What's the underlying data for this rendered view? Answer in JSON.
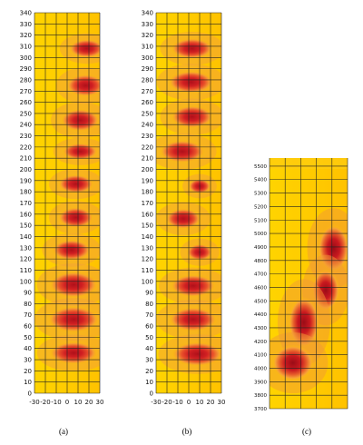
{
  "panels": [
    {
      "id": "a",
      "caption": "(a)",
      "x_ticks": [
        "-30",
        "-20",
        "-10",
        "0",
        "10",
        "20",
        "30"
      ],
      "y_ticks": [
        "340",
        "330",
        "320",
        "310",
        "300",
        "290",
        "280",
        "270",
        "260",
        "250",
        "240",
        "230",
        "220",
        "210",
        "200",
        "190",
        "180",
        "170",
        "160",
        "150",
        "140",
        "130",
        "120",
        "110",
        "100",
        "90",
        "80",
        "70",
        "60",
        "50",
        "40",
        "30",
        "20",
        "10",
        "0"
      ],
      "blobs": [
        {
          "x": 18,
          "y": 308,
          "w": 22,
          "h": 10
        },
        {
          "x": 17,
          "y": 275,
          "w": 24,
          "h": 12
        },
        {
          "x": 12,
          "y": 244,
          "w": 24,
          "h": 12
        },
        {
          "x": 12,
          "y": 216,
          "w": 22,
          "h": 9
        },
        {
          "x": 8,
          "y": 187,
          "w": 22,
          "h": 10
        },
        {
          "x": 8,
          "y": 157,
          "w": 22,
          "h": 11
        },
        {
          "x": 4,
          "y": 128,
          "w": 24,
          "h": 11
        },
        {
          "x": 6,
          "y": 97,
          "w": 30,
          "h": 14
        },
        {
          "x": 6,
          "y": 66,
          "w": 32,
          "h": 14
        },
        {
          "x": 6,
          "y": 36,
          "w": 30,
          "h": 12
        }
      ]
    },
    {
      "id": "b",
      "caption": "(b)",
      "x_ticks": [
        "-30",
        "-20",
        "-10",
        "0",
        "10",
        "20",
        "30"
      ],
      "y_ticks": [
        "340",
        "330",
        "320",
        "310",
        "300",
        "290",
        "280",
        "270",
        "260",
        "250",
        "240",
        "230",
        "220",
        "210",
        "200",
        "190",
        "180",
        "170",
        "160",
        "150",
        "140",
        "130",
        "120",
        "110",
        "100",
        "90",
        "80",
        "70",
        "60",
        "50",
        "40",
        "30",
        "20",
        "10",
        "0"
      ],
      "blobs": [
        {
          "x": 3,
          "y": 308,
          "w": 26,
          "h": 11
        },
        {
          "x": 2,
          "y": 278,
          "w": 28,
          "h": 12
        },
        {
          "x": 3,
          "y": 247,
          "w": 26,
          "h": 12
        },
        {
          "x": -6,
          "y": 216,
          "w": 28,
          "h": 12
        },
        {
          "x": 10,
          "y": 185,
          "w": 14,
          "h": 8
        },
        {
          "x": -5,
          "y": 156,
          "w": 22,
          "h": 11
        },
        {
          "x": 10,
          "y": 126,
          "w": 16,
          "h": 9
        },
        {
          "x": 4,
          "y": 96,
          "w": 28,
          "h": 12
        },
        {
          "x": 4,
          "y": 66,
          "w": 30,
          "h": 13
        },
        {
          "x": 8,
          "y": 35,
          "w": 32,
          "h": 13
        }
      ]
    },
    {
      "id": "c",
      "caption": "(c)",
      "y_ticks": [
        "5500",
        "5400",
        "5300",
        "5200",
        "5100",
        "5000",
        "4900",
        "4800",
        "4700",
        "4600",
        "4500",
        "4400",
        "4300",
        "4200",
        "4100",
        "4000",
        "3900",
        "3800",
        "3700"
      ],
      "blobs": [
        {
          "col": 4.1,
          "y": 4890,
          "w": 1.8,
          "h": 250
        },
        {
          "col": 3.6,
          "y": 4580,
          "w": 1.6,
          "h": 220
        },
        {
          "col": 2.2,
          "y": 4340,
          "w": 1.8,
          "h": 270
        },
        {
          "col": 1.5,
          "y": 4040,
          "w": 2.4,
          "h": 190
        }
      ]
    }
  ]
}
